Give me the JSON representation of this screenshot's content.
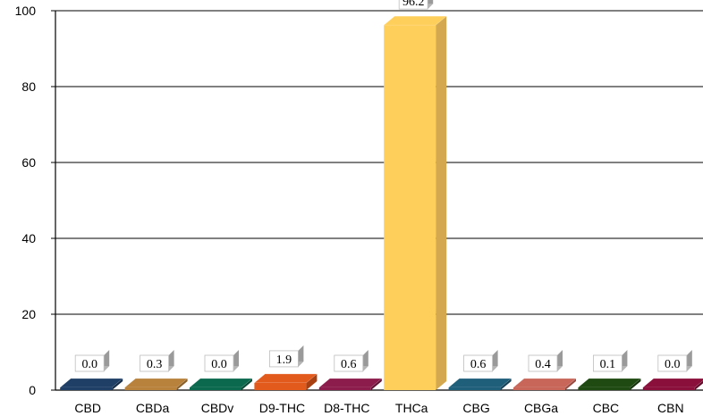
{
  "chart_data": {
    "type": "bar",
    "title": "",
    "xlabel": "",
    "ylabel": "",
    "ylim": [
      0,
      100
    ],
    "yticks": [
      0,
      20,
      40,
      60,
      80,
      100
    ],
    "grid": true,
    "legend": "none",
    "categories": [
      "CBD",
      "CBDa",
      "CBDv",
      "D9-THC",
      "D8-THC",
      "THCa",
      "CBG",
      "CBGa",
      "CBC",
      "CBN"
    ],
    "values": [
      0.0,
      0.3,
      0.0,
      1.9,
      0.6,
      96.2,
      0.6,
      0.4,
      0.1,
      0.0
    ],
    "value_labels": [
      "0.0",
      "0.3",
      "0.0",
      "1.9",
      "0.6",
      "96.2",
      "0.6",
      "0.4",
      "0.1",
      "0.0"
    ],
    "ytick_labels": [
      "0",
      "20",
      "40",
      "60",
      "80",
      "100"
    ],
    "colors": [
      "#1f3f66",
      "#b8823c",
      "#0b6a4e",
      "#e25a1c",
      "#8c1c4c",
      "#ffcf5c",
      "#1f5f7a",
      "#c8665a",
      "#1f4a12",
      "#8a0f3a"
    ],
    "side_colors": [
      "#142b47",
      "#8a6129",
      "#074a36",
      "#a84012",
      "#611234",
      "#d4a84e",
      "#154257",
      "#9a4b41",
      "#14320b",
      "#5f0a28"
    ]
  }
}
